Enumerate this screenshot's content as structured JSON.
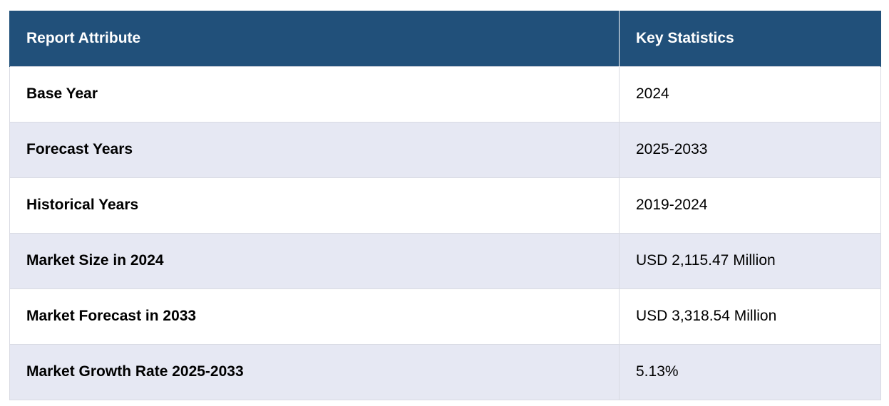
{
  "table": {
    "headers": [
      "Report Attribute",
      "Key Statistics"
    ],
    "rows": [
      {
        "attribute": "Base Year",
        "value": "2024"
      },
      {
        "attribute": "Forecast Years",
        "value": "2025-2033"
      },
      {
        "attribute": "Historical Years",
        "value": "2019-2024"
      },
      {
        "attribute": "Market Size in 2024",
        "value": "USD 2,115.47 Million"
      },
      {
        "attribute": "Market Forecast in 2033",
        "value": "USD 3,318.54 Million"
      },
      {
        "attribute": "Market Growth Rate 2025-2033",
        "value": "5.13%"
      }
    ]
  },
  "colors": {
    "header_bg": "#21507a",
    "header_text": "#ffffff",
    "alt_row_bg": "#e6e8f3",
    "row_bg": "#ffffff",
    "border": "#d9dbe3"
  }
}
